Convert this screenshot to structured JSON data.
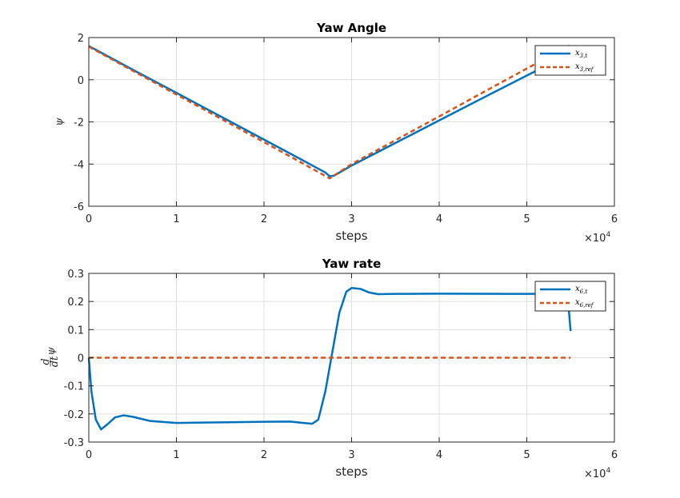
{
  "chart_data": [
    {
      "type": "line",
      "title": "Yaw Angle",
      "xlabel": "steps",
      "ylabel": "ψ",
      "x_multiplier": "×10",
      "x_multiplier_exp": "4",
      "xlim": [
        0,
        6
      ],
      "ylim": [
        -6,
        2
      ],
      "xticks": [
        "0",
        "1",
        "2",
        "3",
        "4",
        "5",
        "6"
      ],
      "yticks": [
        "2",
        "0",
        "-2",
        "-4",
        "-6"
      ],
      "grid": true,
      "legend_position": "top-right",
      "series": [
        {
          "name": "x3,t",
          "name_main": "x",
          "name_sub": "3,t",
          "color": "#0072BD",
          "style": "solid",
          "x": [
            0,
            0.5,
            1,
            1.5,
            2,
            2.5,
            2.7,
            2.75,
            2.8,
            3,
            3.5,
            4,
            4.5,
            5,
            5.5
          ],
          "y": [
            1.6,
            0.48,
            -0.62,
            -1.73,
            -2.84,
            -3.95,
            -4.4,
            -4.58,
            -4.55,
            -4.07,
            -3.0,
            -1.93,
            -0.86,
            0.2,
            1.25
          ]
        },
        {
          "name": "x3,ref",
          "name_main": "x",
          "name_sub": "3,ref",
          "color": "#D95319",
          "style": "dashed",
          "x": [
            0,
            0.5,
            1,
            1.5,
            2,
            2.5,
            2.75,
            3,
            3.5,
            4,
            4.5,
            5,
            5.5
          ],
          "y": [
            1.57,
            0.43,
            -0.7,
            -1.83,
            -2.96,
            -4.1,
            -4.68,
            -4.0,
            -2.87,
            -1.74,
            -0.6,
            0.53,
            1.66
          ]
        }
      ]
    },
    {
      "type": "line",
      "title": "Yaw rate",
      "xlabel": "steps",
      "ylabel": "d/dt ψ",
      "ylabel_num": "d",
      "ylabel_den": "dt",
      "ylabel_sym": "ψ",
      "x_multiplier": "×10",
      "x_multiplier_exp": "4",
      "xlim": [
        0,
        6
      ],
      "ylim": [
        -0.3,
        0.3
      ],
      "xticks": [
        "0",
        "1",
        "2",
        "3",
        "4",
        "5",
        "6"
      ],
      "yticks": [
        "0.3",
        "0.2",
        "0.1",
        "0",
        "-0.1",
        "-0.2",
        "-0.3"
      ],
      "grid": true,
      "legend_position": "top-right",
      "series": [
        {
          "name": "x6,t",
          "name_main": "x",
          "name_sub": "6,t",
          "color": "#0072BD",
          "style": "solid",
          "x": [
            0,
            0.03,
            0.08,
            0.14,
            0.22,
            0.3,
            0.4,
            0.5,
            0.7,
            1.0,
            1.5,
            2.0,
            2.3,
            2.45,
            2.55,
            2.62,
            2.7,
            2.78,
            2.86,
            2.94,
            3.0,
            3.1,
            3.2,
            3.3,
            3.5,
            4.0,
            5.0,
            5.4,
            5.48,
            5.5
          ],
          "y": [
            0,
            -0.12,
            -0.22,
            -0.255,
            -0.235,
            -0.212,
            -0.205,
            -0.21,
            -0.225,
            -0.232,
            -0.23,
            -0.228,
            -0.227,
            -0.232,
            -0.235,
            -0.22,
            -0.12,
            0.02,
            0.16,
            0.235,
            0.248,
            0.245,
            0.232,
            0.226,
            0.227,
            0.228,
            0.227,
            0.227,
            0.17,
            0.095
          ]
        },
        {
          "name": "x6,ref",
          "name_main": "x",
          "name_sub": "6,ref",
          "color": "#D95319",
          "style": "dashed",
          "x": [
            0,
            5.5
          ],
          "y": [
            0,
            0
          ]
        }
      ]
    }
  ]
}
